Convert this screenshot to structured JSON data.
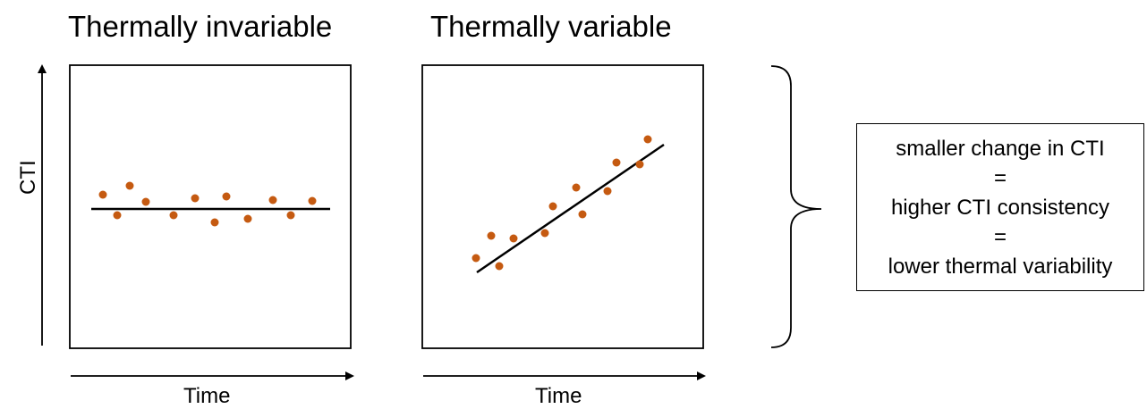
{
  "panels": [
    {
      "title": "Thermally invariable",
      "xlabel": "Time",
      "ylabel": "CTI",
      "trend": "flat"
    },
    {
      "title": "Thermally variable",
      "xlabel": "Time",
      "ylabel": "",
      "trend": "increasing"
    }
  ],
  "summary": {
    "line1": "smaller change in CTI",
    "line2": "=",
    "line3": "higher CTI consistency",
    "line4": "=",
    "line5": "lower thermal variability"
  },
  "colors": {
    "point": "#c55a11",
    "line": "#000000"
  }
}
